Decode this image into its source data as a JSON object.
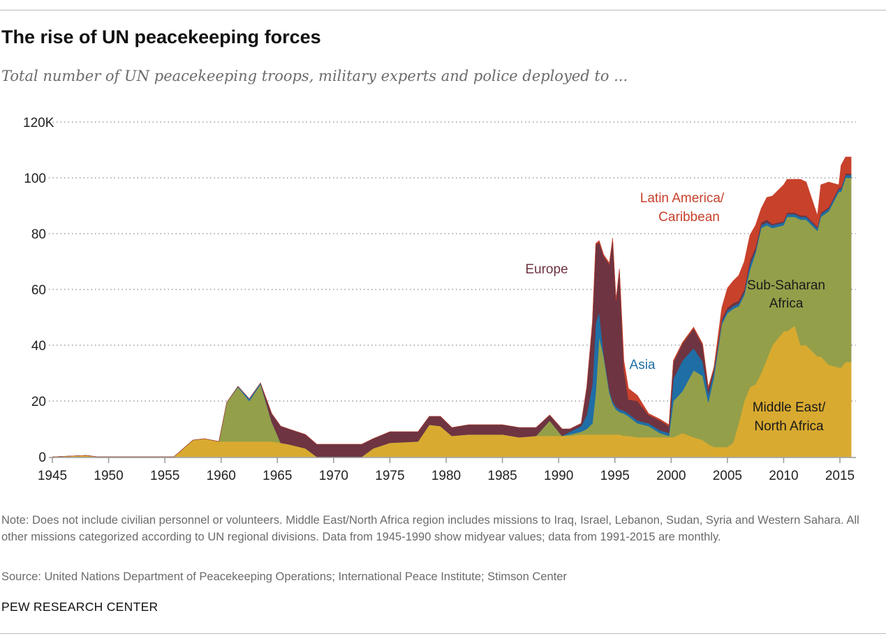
{
  "title": "The rise of UN peacekeeping forces",
  "subtitle": "Total number of UN peacekeeping troops, military experts and police deployed to ...",
  "note": "Note: Does not include civilian personnel or volunteers. Middle East/North Africa region includes missions to Iraq, Israel, Lebanon, Sudan, Syria and Western Sahara. All other missions categorized according to UN regional divisions. Data from 1945-1990 show midyear values; data from 1991-2015 are monthly.",
  "source": "Source: United Nations Department of Peacekeeping Operations; International Peace Institute; Stimson Center",
  "org": "PEW RESEARCH CENTER",
  "chart_data": {
    "type": "area",
    "stacked": true,
    "title": "The rise of UN peacekeeping forces",
    "xlim": [
      1945,
      2016
    ],
    "ylim": [
      0,
      120
    ],
    "grid": true,
    "x_ticks": [
      "1945",
      "1950",
      "1955",
      "1960",
      "1965",
      "1970",
      "1975",
      "1980",
      "1985",
      "1990",
      "1995",
      "2000",
      "2005",
      "2010",
      "2015"
    ],
    "y_ticks": [
      {
        "value": 0,
        "label": "0"
      },
      {
        "value": 20,
        "label": "20"
      },
      {
        "value": 40,
        "label": "40"
      },
      {
        "value": 60,
        "label": "60"
      },
      {
        "value": 80,
        "label": "80"
      },
      {
        "value": 100,
        "label": "100"
      },
      {
        "value": 120,
        "label": "120K"
      }
    ],
    "x": [
      1945,
      1948,
      1949,
      1955.8,
      1957.5,
      1958.5,
      1959.8,
      1960.5,
      1961.5,
      1962.5,
      1963.5,
      1964.5,
      1965.3,
      1966,
      1967.5,
      1968.5,
      1972.5,
      1973.5,
      1975,
      1977.5,
      1978.5,
      1979.5,
      1980.5,
      1982,
      1985,
      1986.5,
      1988,
      1989.2,
      1990.3,
      1991,
      1992,
      1992.5,
      1993,
      1993.3,
      1993.6,
      1994,
      1994.5,
      1994.8,
      1995.1,
      1995.4,
      1995.8,
      1996.2,
      1997,
      1998,
      1999,
      1999.8,
      2000.2,
      2001,
      2002,
      2002.8,
      2003.3,
      2003.8,
      2004.5,
      2005,
      2005.5,
      2006,
      2006.5,
      2007,
      2007.5,
      2008,
      2008.5,
      2009,
      2010,
      2010.3,
      2011,
      2011.5,
      2012,
      2013,
      2013.3,
      2014,
      2014.9,
      2015.1,
      2015.5,
      2016
    ],
    "series": [
      {
        "name": "Middle East/ North Africa",
        "color": "#D8AA30",
        "values": [
          0,
          0.5,
          0,
          0,
          6,
          6.5,
          5.5,
          5.5,
          5.5,
          5.5,
          5.5,
          5.5,
          5,
          4.5,
          3,
          0,
          0,
          3,
          5,
          5.5,
          11.5,
          11,
          7.5,
          8,
          8,
          7,
          7.5,
          7.5,
          7.5,
          7.5,
          8,
          8,
          8,
          8,
          8,
          8,
          8,
          8,
          8,
          8,
          7.5,
          7.5,
          7,
          7,
          7,
          7,
          7,
          8.5,
          7,
          6,
          4.5,
          3.5,
          3.5,
          3.5,
          5,
          12,
          20,
          25,
          26,
          30,
          35,
          40,
          45,
          45,
          47,
          40,
          40,
          36,
          36,
          33,
          32,
          32,
          34,
          34
        ]
      },
      {
        "name": "Sub-Saharan Africa",
        "color": "#949F4A",
        "values": [
          0,
          0,
          0,
          0,
          0,
          0,
          0,
          14,
          19.5,
          14.5,
          20.5,
          7,
          0,
          0,
          0,
          0,
          0,
          0,
          0,
          0,
          0,
          0,
          0,
          0,
          0,
          0,
          0,
          5.5,
          0,
          0.5,
          1,
          2,
          4,
          15,
          35,
          28,
          15,
          11,
          9,
          8,
          8,
          7,
          5,
          4,
          1.5,
          0.5,
          13,
          15,
          24,
          23,
          15,
          25,
          44,
          48,
          48,
          42,
          38,
          42,
          47,
          52,
          48,
          42,
          38,
          41,
          39,
          45,
          45,
          45,
          50,
          55,
          63,
          63,
          66,
          66
        ]
      },
      {
        "name": "Asia",
        "color": "#1F6EA6",
        "values": [
          0,
          0,
          0,
          0,
          0,
          0,
          0,
          0,
          0.3,
          0.8,
          0.5,
          0,
          0,
          0,
          0,
          0,
          0,
          0,
          0,
          0,
          0,
          0,
          0,
          0,
          0,
          0,
          0,
          0,
          0,
          1,
          2,
          5,
          14,
          25,
          9,
          1,
          1,
          1,
          1,
          1,
          1,
          1,
          1,
          1,
          1,
          1,
          8,
          11,
          8,
          5,
          3,
          2,
          1,
          1,
          1,
          1,
          1,
          2,
          1,
          1,
          1,
          1,
          1,
          1,
          1,
          1,
          1,
          1,
          1,
          1,
          1,
          1,
          1,
          1
        ]
      },
      {
        "name": "Europe",
        "color": "#6E3441",
        "values": [
          0,
          0,
          0,
          0,
          0,
          0,
          0,
          0,
          0,
          0,
          0,
          3,
          6,
          5.5,
          5,
          4.5,
          4.5,
          3.5,
          4,
          3.5,
          3,
          3.5,
          3,
          3.5,
          3.5,
          3.5,
          3,
          2,
          2.5,
          1,
          1,
          10,
          22,
          28,
          25,
          35,
          45,
          58,
          38,
          50,
          15,
          5,
          7,
          3,
          3.5,
          2.5,
          6,
          6,
          7,
          6,
          2,
          1,
          1,
          1,
          1,
          1,
          1,
          1.5,
          1,
          1,
          1,
          0.5,
          0.5,
          0.5,
          0.5,
          0.5,
          0.5,
          0.5,
          0.5,
          0.5,
          0.5,
          0.5,
          0.5,
          0.5
        ]
      },
      {
        "name": "Latin America/ Caribbean",
        "color": "#C8412B",
        "values": [
          0,
          0,
          0,
          0,
          0,
          0,
          0,
          0,
          0,
          0,
          0,
          0,
          0,
          0,
          0,
          0,
          0,
          0,
          0,
          0,
          0,
          0,
          0,
          0,
          0,
          0,
          0,
          0,
          0,
          0,
          0,
          0,
          0.5,
          0.5,
          0.5,
          0.5,
          0.5,
          0.5,
          0.5,
          0.5,
          3,
          4,
          2,
          0.5,
          0.5,
          0.5,
          0.5,
          0.5,
          0.5,
          0.5,
          0.5,
          0.5,
          4,
          7,
          8,
          9,
          10,
          9,
          8,
          5,
          8,
          10,
          13,
          12,
          12,
          13,
          12,
          4,
          10,
          9,
          1,
          8,
          6,
          6
        ]
      }
    ],
    "labels": {
      "europe": "Europe",
      "asia": "Asia",
      "latam": [
        "Latin America/",
        "Caribbean"
      ],
      "ssa": [
        "Sub-Saharan",
        "Africa"
      ],
      "mena": [
        "Middle East/",
        "North Africa"
      ]
    }
  }
}
